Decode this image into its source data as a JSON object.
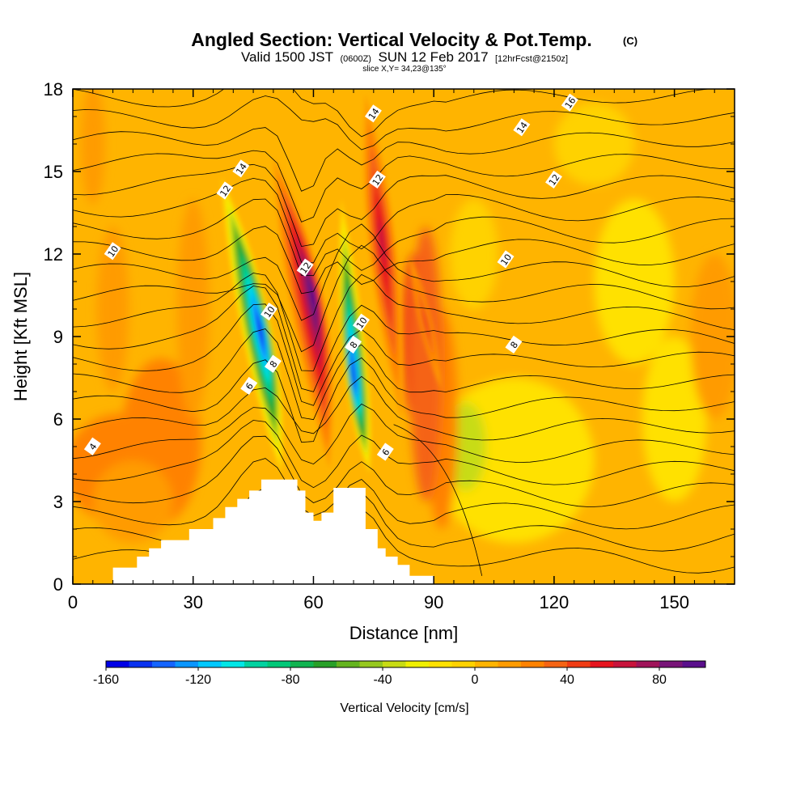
{
  "chart_data": {
    "type": "heatmap",
    "title": "Angled Section: Vertical Velocity & Pot.Temp.",
    "title_units": "(C)",
    "subtitle": {
      "valid": "Valid 1500 JST",
      "utc": "(0600Z)",
      "date": "SUN 12 Feb 2017",
      "forecast": "[12hrFcst@2150z]"
    },
    "slice_label": "slice X,Y= 34,23@135°",
    "xlabel": "Distance [nm]",
    "ylabel": "Height [Kft MSL]",
    "xlim": [
      0,
      165
    ],
    "ylim": [
      0,
      18
    ],
    "xticks": [
      "0",
      "30",
      "60",
      "90",
      "120",
      "150"
    ],
    "yticks": [
      "0",
      "3",
      "6",
      "9",
      "12",
      "15",
      "18"
    ],
    "colorbar": {
      "label": "Vertical Velocity [cm/s]",
      "min": -160,
      "max": 100,
      "step": 10,
      "tick_labels": [
        "-160",
        "-120",
        "-80",
        "-40",
        "0",
        "40",
        "80"
      ],
      "colors": [
        "#0000e6",
        "#0a32f0",
        "#1464ff",
        "#0a96ff",
        "#00c8ff",
        "#00e6e6",
        "#00d2a0",
        "#00c878",
        "#10b450",
        "#28a028",
        "#64b41e",
        "#96c81e",
        "#c8dc14",
        "#f0f000",
        "#ffe100",
        "#ffd200",
        "#ffb400",
        "#ff9b00",
        "#ff8200",
        "#f56414",
        "#f03c14",
        "#e6141e",
        "#c8143c",
        "#a0145a",
        "#781478",
        "#5a0f8c"
      ]
    },
    "vertical_velocity_extrema": [
      {
        "x": 49,
        "y": 9.0,
        "w": -160
      },
      {
        "x": 71,
        "y": 7.5,
        "w": -160
      },
      {
        "x": 61,
        "y": 10.0,
        "w": 95
      },
      {
        "x": 77,
        "y": 13.0,
        "w": 55
      }
    ],
    "theta_contours": [
      {
        "label": "4",
        "x": 5,
        "y": 5.0
      },
      {
        "label": "6",
        "x": 44,
        "y": 7.2
      },
      {
        "label": "8",
        "x": 50,
        "y": 8.0
      },
      {
        "label": "10",
        "x": 49,
        "y": 9.9
      },
      {
        "label": "12",
        "x": 58,
        "y": 11.5
      },
      {
        "label": "6",
        "x": 78,
        "y": 4.8
      },
      {
        "label": "8",
        "x": 70,
        "y": 8.7
      },
      {
        "label": "10",
        "x": 72,
        "y": 9.5
      },
      {
        "label": "10",
        "x": 10,
        "y": 12.1
      },
      {
        "label": "10",
        "x": 108,
        "y": 11.8
      },
      {
        "label": "8",
        "x": 110,
        "y": 8.7
      },
      {
        "label": "12",
        "x": 38,
        "y": 14.3
      },
      {
        "label": "14",
        "x": 42,
        "y": 15.1
      },
      {
        "label": "12",
        "x": 76,
        "y": 14.7
      },
      {
        "label": "14",
        "x": 75,
        "y": 17.1
      },
      {
        "label": "14",
        "x": 112,
        "y": 16.6
      },
      {
        "label": "16",
        "x": 124,
        "y": 17.5
      },
      {
        "label": "12",
        "x": 120,
        "y": 14.7
      }
    ]
  }
}
